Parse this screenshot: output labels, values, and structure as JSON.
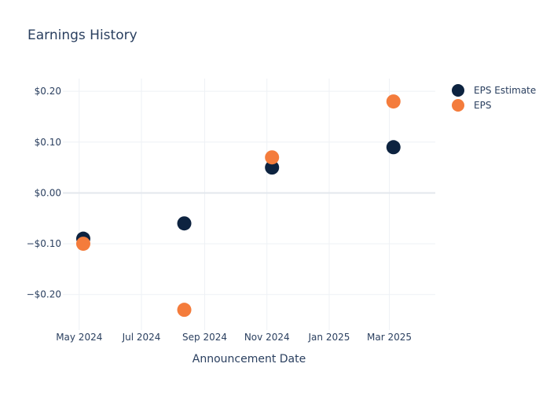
{
  "chart_data": {
    "type": "scatter",
    "title": "Earnings History",
    "xlabel": "Announcement Date",
    "ylabel": "",
    "x_range": [
      "2024-04-15",
      "2025-04-15"
    ],
    "y_range": [
      -0.27,
      0.225
    ],
    "x_ticks": [
      {
        "date": "2024-05-01",
        "label": "May 2024"
      },
      {
        "date": "2024-07-01",
        "label": "Jul 2024"
      },
      {
        "date": "2024-09-01",
        "label": "Sep 2024"
      },
      {
        "date": "2024-11-01",
        "label": "Nov 2024"
      },
      {
        "date": "2025-01-01",
        "label": "Jan 2025"
      },
      {
        "date": "2025-03-01",
        "label": "Mar 2025"
      }
    ],
    "y_ticks": [
      {
        "value": 0.2,
        "label": "$0.20"
      },
      {
        "value": 0.1,
        "label": "$0.10"
      },
      {
        "value": 0.0,
        "label": "$0.00"
      },
      {
        "value": -0.1,
        "label": "−$0.10"
      },
      {
        "value": -0.2,
        "label": "−$0.20"
      }
    ],
    "grid": true,
    "legend_position": "top-right",
    "series": [
      {
        "name": "EPS Estimate",
        "color": "#0d2340",
        "points": [
          {
            "x": "2024-05-05",
            "y": -0.09
          },
          {
            "x": "2024-08-12",
            "y": -0.06
          },
          {
            "x": "2024-11-06",
            "y": 0.05
          },
          {
            "x": "2025-03-05",
            "y": 0.09
          }
        ]
      },
      {
        "name": "EPS",
        "color": "#f47c3c",
        "points": [
          {
            "x": "2024-05-05",
            "y": -0.1
          },
          {
            "x": "2024-08-12",
            "y": -0.23
          },
          {
            "x": "2024-11-06",
            "y": 0.07
          },
          {
            "x": "2025-03-05",
            "y": 0.18
          }
        ]
      }
    ]
  }
}
